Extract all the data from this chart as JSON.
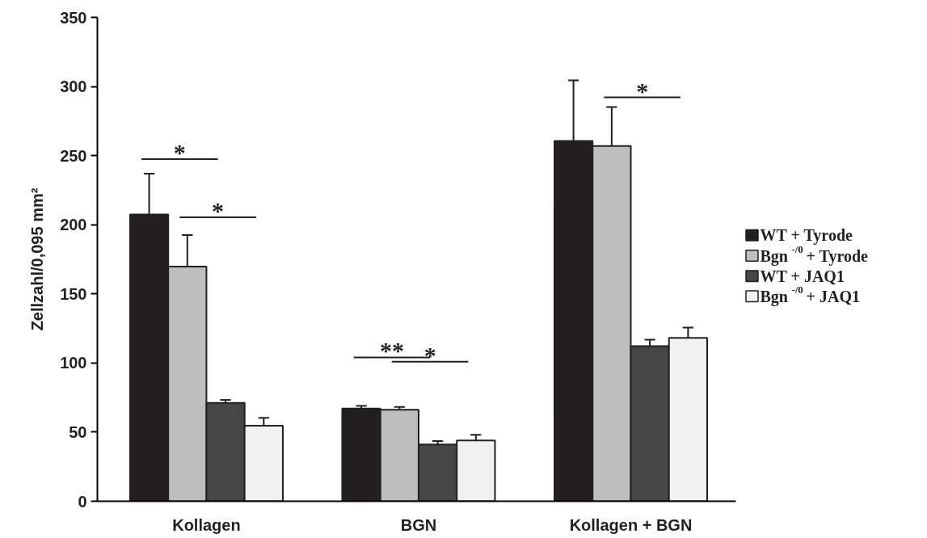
{
  "chart_data": {
    "type": "bar",
    "categories": [
      "Kollagen",
      "BGN",
      "Kollagen + BGN"
    ],
    "ylabel": "Zellzahl/0,095 mm²",
    "ylim": [
      0,
      350
    ],
    "yticks": [
      0,
      50,
      100,
      150,
      200,
      250,
      300,
      350
    ],
    "grid": false,
    "legend": "right",
    "series": [
      {
        "name": "WT + Tyrode",
        "color": "#231f20",
        "values": [
          207.5,
          67,
          260.6
        ],
        "errors": [
          [
            207.5,
            237
          ],
          [
            67,
            69
          ],
          [
            260.6,
            304.4
          ]
        ]
      },
      {
        "name": "Bgn$^{-/0}$ + Tyrode",
        "color": "#bcbec0",
        "values": [
          169.7,
          66.1,
          256.9
        ],
        "errors": [
          [
            169.7,
            192.6
          ],
          [
            66.1,
            68.2
          ],
          [
            256.9,
            285.1
          ]
        ]
      },
      {
        "name": "WT + JAQ1",
        "color": "#464648",
        "values": [
          71.1,
          41.1,
          112.2
        ],
        "errors": [
          [
            71.1,
            73.3
          ],
          [
            41.1,
            43.5
          ],
          [
            112.2,
            116.9
          ]
        ]
      },
      {
        "name": "Bgn$^{-/0}$ + JAQ1",
        "color": "#f1f1f2",
        "values": [
          54.7,
          44,
          118.2
        ],
        "errors": [
          [
            54.7,
            60.4
          ],
          [
            44,
            48
          ],
          [
            118.2,
            125.6
          ]
        ]
      }
    ],
    "annotations": [
      "*",
      "*",
      "**",
      "*",
      "*"
    ]
  }
}
